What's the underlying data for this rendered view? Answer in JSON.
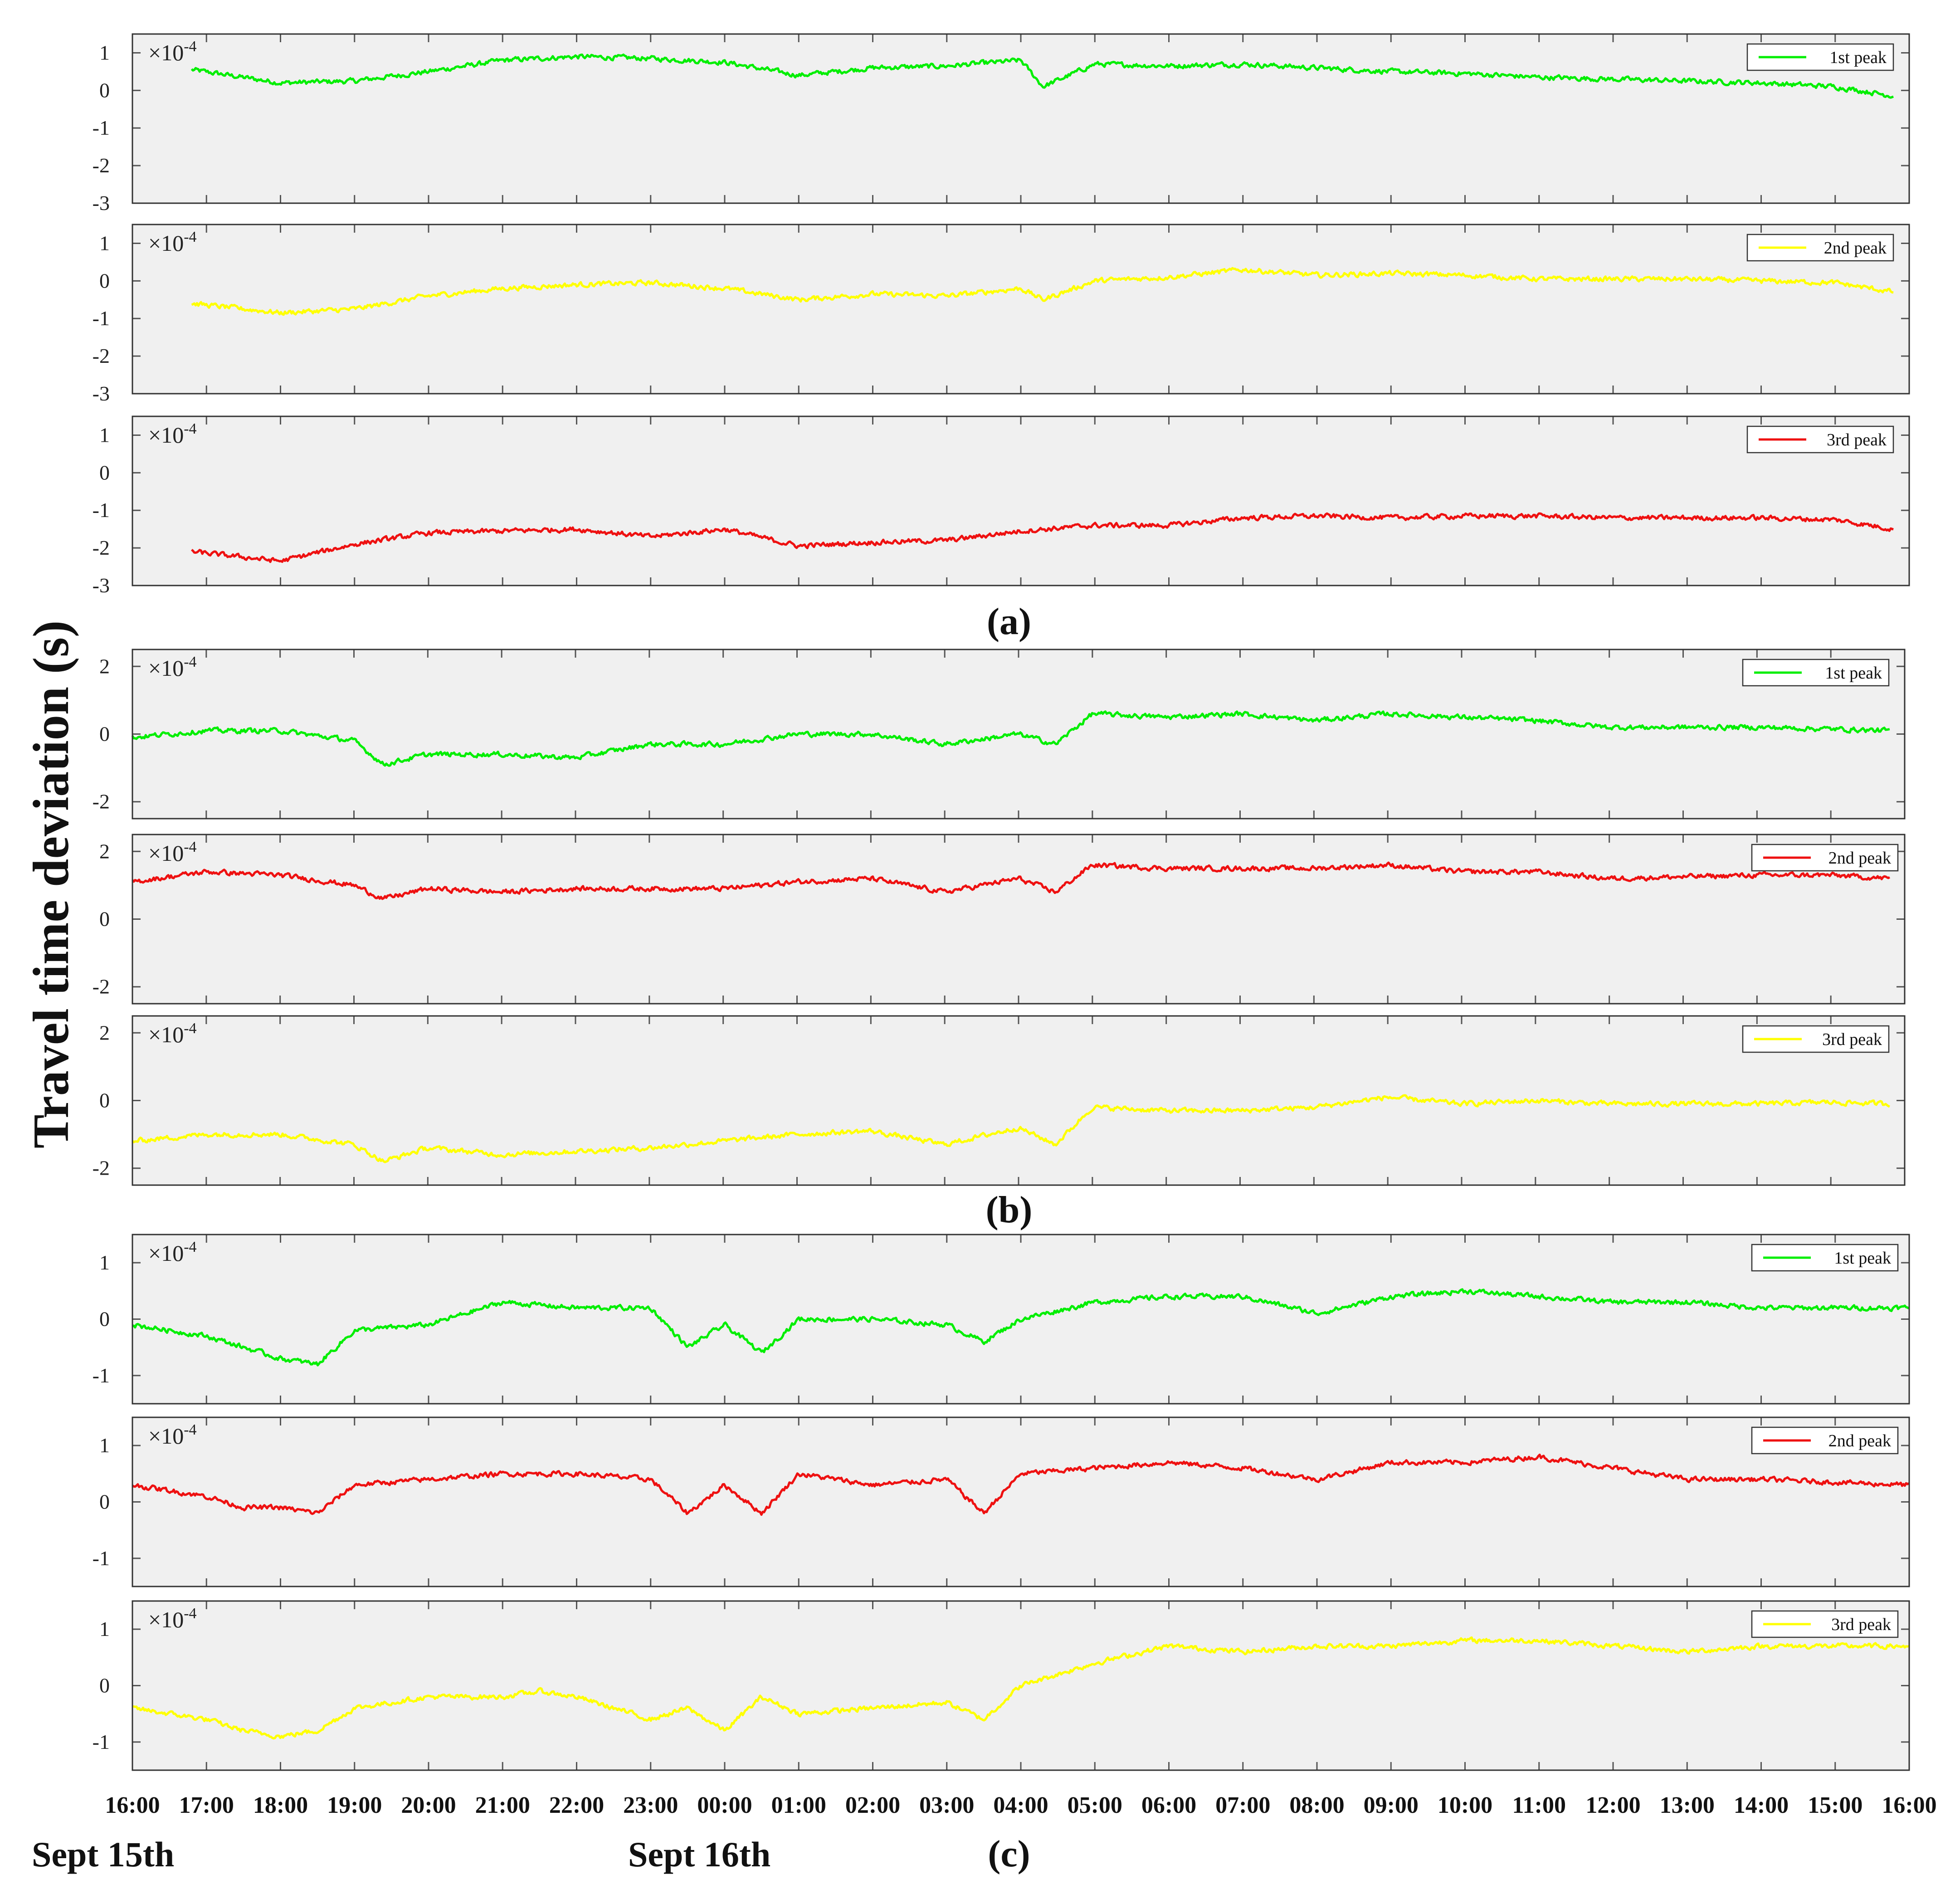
{
  "figure": {
    "ylabel": "Travel time deviation (s)",
    "x_tick_labels": [
      "16:00",
      "17:00",
      "18:00",
      "19:00",
      "20:00",
      "21:00",
      "22:00",
      "23:00",
      "00:00",
      "01:00",
      "02:00",
      "03:00",
      "04:00",
      "05:00",
      "06:00",
      "07:00",
      "08:00",
      "09:00",
      "10:00",
      "11:00",
      "12:00",
      "13:00",
      "14:00",
      "15:00",
      "16:00"
    ],
    "dates": {
      "start": "Sept 15th",
      "mid": "Sept 16th"
    },
    "groups": [
      {
        "label": "(a)"
      },
      {
        "label": "(b)"
      },
      {
        "label": "(c)"
      }
    ]
  },
  "chart_data": [
    {
      "type": "line",
      "group": "(a)",
      "legend": "1st peak",
      "color": "#00ee00",
      "exponent": "×10",
      "exponent_power": "-4",
      "ylim": [
        -3,
        1.5
      ],
      "yticks": [
        1,
        0,
        -1,
        -2,
        -3
      ],
      "ytick_labels": [
        "1",
        "0",
        "-1",
        "-2",
        "-3"
      ],
      "x_unit": "hours since Sept 15th 16:00",
      "xlim": [
        0,
        24
      ],
      "x_start": 0.8,
      "x_end": 23.8,
      "x": [
        0.8,
        2,
        3,
        4,
        5,
        6,
        7,
        8,
        9,
        10,
        11,
        12,
        12.3,
        13,
        14,
        15,
        16,
        17,
        18,
        19,
        20,
        21,
        22,
        23,
        23.8
      ],
      "y": [
        0.55,
        0.2,
        0.25,
        0.5,
        0.8,
        0.9,
        0.85,
        0.75,
        0.4,
        0.6,
        0.65,
        0.8,
        0.1,
        0.7,
        0.65,
        0.7,
        0.6,
        0.5,
        0.45,
        0.35,
        0.3,
        0.25,
        0.2,
        0.1,
        -0.15
      ]
    },
    {
      "type": "line",
      "group": "(a)",
      "legend": "2nd peak",
      "color": "#ffff00",
      "exponent": "×10",
      "exponent_power": "-4",
      "ylim": [
        -3,
        1.5
      ],
      "yticks": [
        1,
        0,
        -1,
        -2,
        -3
      ],
      "ytick_labels": [
        "1",
        "0",
        "-1",
        "-2",
        "-3"
      ],
      "x_unit": "hours since Sept 15th 16:00",
      "xlim": [
        0,
        24
      ],
      "x_start": 0.8,
      "x_end": 23.8,
      "x": [
        0.8,
        2,
        3,
        4,
        5,
        6,
        7,
        8,
        9,
        10,
        11,
        12,
        12.3,
        13,
        14,
        15,
        16,
        17,
        18,
        19,
        20,
        21,
        22,
        23,
        23.8
      ],
      "y": [
        -0.6,
        -0.85,
        -0.75,
        -0.4,
        -0.2,
        -0.1,
        -0.05,
        -0.2,
        -0.5,
        -0.35,
        -0.4,
        -0.2,
        -0.5,
        0.0,
        0.1,
        0.3,
        0.15,
        0.2,
        0.15,
        0.05,
        0.05,
        0.05,
        0.0,
        -0.05,
        -0.3
      ]
    },
    {
      "type": "line",
      "group": "(a)",
      "legend": "3rd peak",
      "color": "#ee1111",
      "exponent": "×10",
      "exponent_power": "-4",
      "ylim": [
        -3,
        1.5
      ],
      "yticks": [
        1,
        0,
        -1,
        -2,
        -3
      ],
      "ytick_labels": [
        "1",
        "0",
        "-1",
        "-2",
        "-3"
      ],
      "x_unit": "hours since Sept 15th 16:00",
      "xlim": [
        0,
        24
      ],
      "x_start": 0.8,
      "x_end": 23.8,
      "x": [
        0.8,
        2,
        3,
        4,
        5,
        6,
        7,
        8,
        9,
        10,
        11,
        12,
        13,
        14,
        15,
        16,
        17,
        18,
        19,
        20,
        21,
        22,
        23,
        23.8
      ],
      "y": [
        -2.1,
        -2.35,
        -1.9,
        -1.6,
        -1.55,
        -1.5,
        -1.7,
        -1.5,
        -1.95,
        -1.85,
        -1.8,
        -1.55,
        -1.4,
        -1.4,
        -1.2,
        -1.15,
        -1.2,
        -1.15,
        -1.15,
        -1.2,
        -1.2,
        -1.2,
        -1.25,
        -1.5
      ]
    },
    {
      "type": "line",
      "group": "(b)",
      "legend": "1st peak",
      "color": "#00ee00",
      "exponent": "×10",
      "exponent_power": "-4",
      "ylim": [
        -2.5,
        2.5
      ],
      "yticks": [
        2,
        0,
        -2
      ],
      "ytick_labels": [
        "2",
        "0",
        "-2"
      ],
      "x_unit": "hours since Sept 15th 16:00",
      "xlim": [
        0,
        24
      ],
      "x_start": 0,
      "x_end": 23.8,
      "x": [
        0,
        1,
        2,
        3,
        3.4,
        4,
        5,
        6,
        7,
        8,
        9,
        10,
        11,
        12,
        12.5,
        13,
        14,
        15,
        16,
        17,
        18,
        19,
        20,
        21,
        22,
        23,
        23.8
      ],
      "y": [
        -0.1,
        0.1,
        0.1,
        -0.2,
        -0.9,
        -0.6,
        -0.6,
        -0.7,
        -0.3,
        -0.3,
        0.0,
        0.0,
        -0.3,
        0.0,
        -0.3,
        0.6,
        0.5,
        0.6,
        0.4,
        0.6,
        0.5,
        0.4,
        0.2,
        0.2,
        0.2,
        0.15,
        0.1
      ]
    },
    {
      "type": "line",
      "group": "(b)",
      "legend": "2nd peak",
      "color": "#ee1111",
      "exponent": "×10",
      "exponent_power": "-4",
      "ylim": [
        -2.5,
        2.5
      ],
      "yticks": [
        2,
        0,
        -2
      ],
      "ytick_labels": [
        "2",
        "0",
        "-2"
      ],
      "x_unit": "hours since Sept 15th 16:00",
      "xlim": [
        0,
        24
      ],
      "x_start": 0,
      "x_end": 23.8,
      "x": [
        0,
        1,
        2,
        3,
        3.4,
        4,
        5,
        6,
        7,
        8,
        9,
        10,
        11,
        12,
        12.5,
        13,
        14,
        15,
        16,
        17,
        18,
        19,
        20,
        21,
        22,
        23,
        23.8
      ],
      "y": [
        1.1,
        1.4,
        1.3,
        1.0,
        0.6,
        0.9,
        0.8,
        0.9,
        0.9,
        0.9,
        1.1,
        1.2,
        0.8,
        1.2,
        0.8,
        1.6,
        1.5,
        1.5,
        1.5,
        1.6,
        1.4,
        1.4,
        1.2,
        1.25,
        1.3,
        1.3,
        1.2
      ]
    },
    {
      "type": "line",
      "group": "(b)",
      "legend": "3rd peak",
      "color": "#ffff00",
      "exponent": "×10",
      "exponent_power": "-4",
      "ylim": [
        -2.5,
        2.5
      ],
      "yticks": [
        2,
        0,
        -2
      ],
      "ytick_labels": [
        "2",
        "0",
        "-2"
      ],
      "x_unit": "hours since Sept 15th 16:00",
      "xlim": [
        0,
        24
      ],
      "x_start": 0,
      "x_end": 23.8,
      "x": [
        0,
        1,
        2,
        3,
        3.4,
        4,
        5,
        6,
        7,
        8,
        9,
        10,
        11,
        12,
        12.5,
        13,
        14,
        15,
        16,
        17,
        18,
        19,
        20,
        21,
        22,
        23,
        23.8
      ],
      "y": [
        -1.2,
        -1.0,
        -1.0,
        -1.3,
        -1.8,
        -1.4,
        -1.6,
        -1.5,
        -1.4,
        -1.2,
        -1.0,
        -0.9,
        -1.3,
        -0.8,
        -1.3,
        -0.2,
        -0.3,
        -0.3,
        -0.2,
        0.1,
        -0.1,
        0.0,
        -0.1,
        -0.1,
        -0.1,
        -0.05,
        -0.1
      ]
    },
    {
      "type": "line",
      "group": "(c)",
      "legend": "1st peak",
      "color": "#00ee00",
      "exponent": "×10",
      "exponent_power": "-4",
      "ylim": [
        -1.5,
        1.5
      ],
      "yticks": [
        1,
        0,
        -1
      ],
      "ytick_labels": [
        "1",
        "0",
        "-1"
      ],
      "x_unit": "hours since Sept 15th 16:00",
      "xlim": [
        0,
        24
      ],
      "x_start": 0,
      "x_end": 24,
      "x": [
        0,
        1,
        1.5,
        2,
        2.5,
        3,
        4,
        5,
        6,
        7,
        7.5,
        8,
        8.5,
        9,
        10,
        11,
        11.5,
        12,
        13,
        14,
        15,
        16,
        17,
        18,
        19,
        20,
        21,
        22,
        23,
        24
      ],
      "y": [
        -0.1,
        -0.3,
        -0.5,
        -0.7,
        -0.8,
        -0.2,
        -0.1,
        0.3,
        0.2,
        0.2,
        -0.5,
        -0.1,
        -0.6,
        0.0,
        0.0,
        -0.1,
        -0.4,
        0.0,
        0.3,
        0.4,
        0.4,
        0.1,
        0.4,
        0.5,
        0.4,
        0.3,
        0.3,
        0.2,
        0.2,
        0.2
      ]
    },
    {
      "type": "line",
      "group": "(c)",
      "legend": "2nd peak",
      "color": "#ee1111",
      "exponent": "×10",
      "exponent_power": "-4",
      "ylim": [
        -1.5,
        1.5
      ],
      "yticks": [
        1,
        0,
        -1
      ],
      "ytick_labels": [
        "1",
        "0",
        "-1"
      ],
      "x_unit": "hours since Sept 15th 16:00",
      "xlim": [
        0,
        24
      ],
      "x_start": 0,
      "x_end": 24,
      "x": [
        0,
        1,
        1.5,
        2,
        2.5,
        3,
        4,
        5,
        6,
        7,
        7.5,
        8,
        8.5,
        9,
        10,
        11,
        11.5,
        12,
        13,
        14,
        15,
        16,
        17,
        18,
        19,
        20,
        21,
        22,
        23,
        24
      ],
      "y": [
        0.3,
        0.1,
        -0.1,
        -0.1,
        -0.2,
        0.3,
        0.4,
        0.5,
        0.5,
        0.4,
        -0.2,
        0.3,
        -0.2,
        0.5,
        0.3,
        0.4,
        -0.2,
        0.5,
        0.6,
        0.7,
        0.6,
        0.4,
        0.7,
        0.7,
        0.8,
        0.6,
        0.4,
        0.4,
        0.35,
        0.3
      ]
    },
    {
      "type": "line",
      "group": "(c)",
      "legend": "3rd peak",
      "color": "#ffff00",
      "exponent": "×10",
      "exponent_power": "-4",
      "ylim": [
        -1.5,
        1.5
      ],
      "yticks": [
        1,
        0,
        -1
      ],
      "ytick_labels": [
        "1",
        "0",
        "-1"
      ],
      "x_unit": "hours since Sept 15th 16:00",
      "xlim": [
        0,
        24
      ],
      "x_start": 0,
      "x_end": 24,
      "x": [
        0,
        1,
        1.5,
        2,
        2.5,
        3,
        4,
        5,
        5.5,
        6,
        7,
        7.5,
        8,
        8.5,
        9,
        10,
        11,
        11.5,
        12,
        13,
        14,
        15,
        16,
        17,
        18,
        19,
        20,
        21,
        22,
        23,
        24
      ],
      "y": [
        -0.4,
        -0.6,
        -0.8,
        -0.9,
        -0.8,
        -0.4,
        -0.2,
        -0.2,
        -0.1,
        -0.2,
        -0.6,
        -0.4,
        -0.8,
        -0.2,
        -0.5,
        -0.4,
        -0.3,
        -0.6,
        0.0,
        0.4,
        0.7,
        0.6,
        0.7,
        0.7,
        0.8,
        0.8,
        0.7,
        0.6,
        0.7,
        0.7,
        0.7
      ]
    }
  ]
}
